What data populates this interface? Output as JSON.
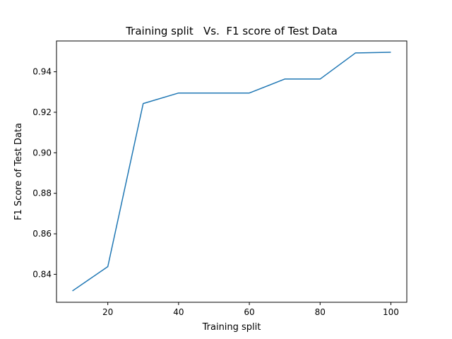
{
  "chart_data": {
    "type": "line",
    "title": "Training split   Vs.  F1 score of Test Data",
    "xlabel": "Training split",
    "ylabel": "F1 Score of Test Data",
    "xlim": [
      5.5,
      104.5
    ],
    "ylim": [
      0.8262,
      0.9552
    ],
    "x_ticks": [
      20,
      40,
      60,
      80,
      100
    ],
    "y_ticks": [
      0.84,
      0.86,
      0.88,
      0.9,
      0.92,
      0.94
    ],
    "x_tick_labels": [
      "20",
      "40",
      "60",
      "80",
      "100"
    ],
    "y_tick_labels": [
      "0.84",
      "0.86",
      "0.88",
      "0.90",
      "0.92",
      "0.94"
    ],
    "grid": false,
    "series": [
      {
        "color": "#1f77b4",
        "x": [
          10,
          20,
          30,
          40,
          50,
          60,
          70,
          80,
          90,
          100
        ],
        "y": [
          0.8318,
          0.8438,
          0.9243,
          0.9295,
          0.9295,
          0.9295,
          0.9364,
          0.9364,
          0.9493,
          0.9496
        ]
      }
    ]
  }
}
